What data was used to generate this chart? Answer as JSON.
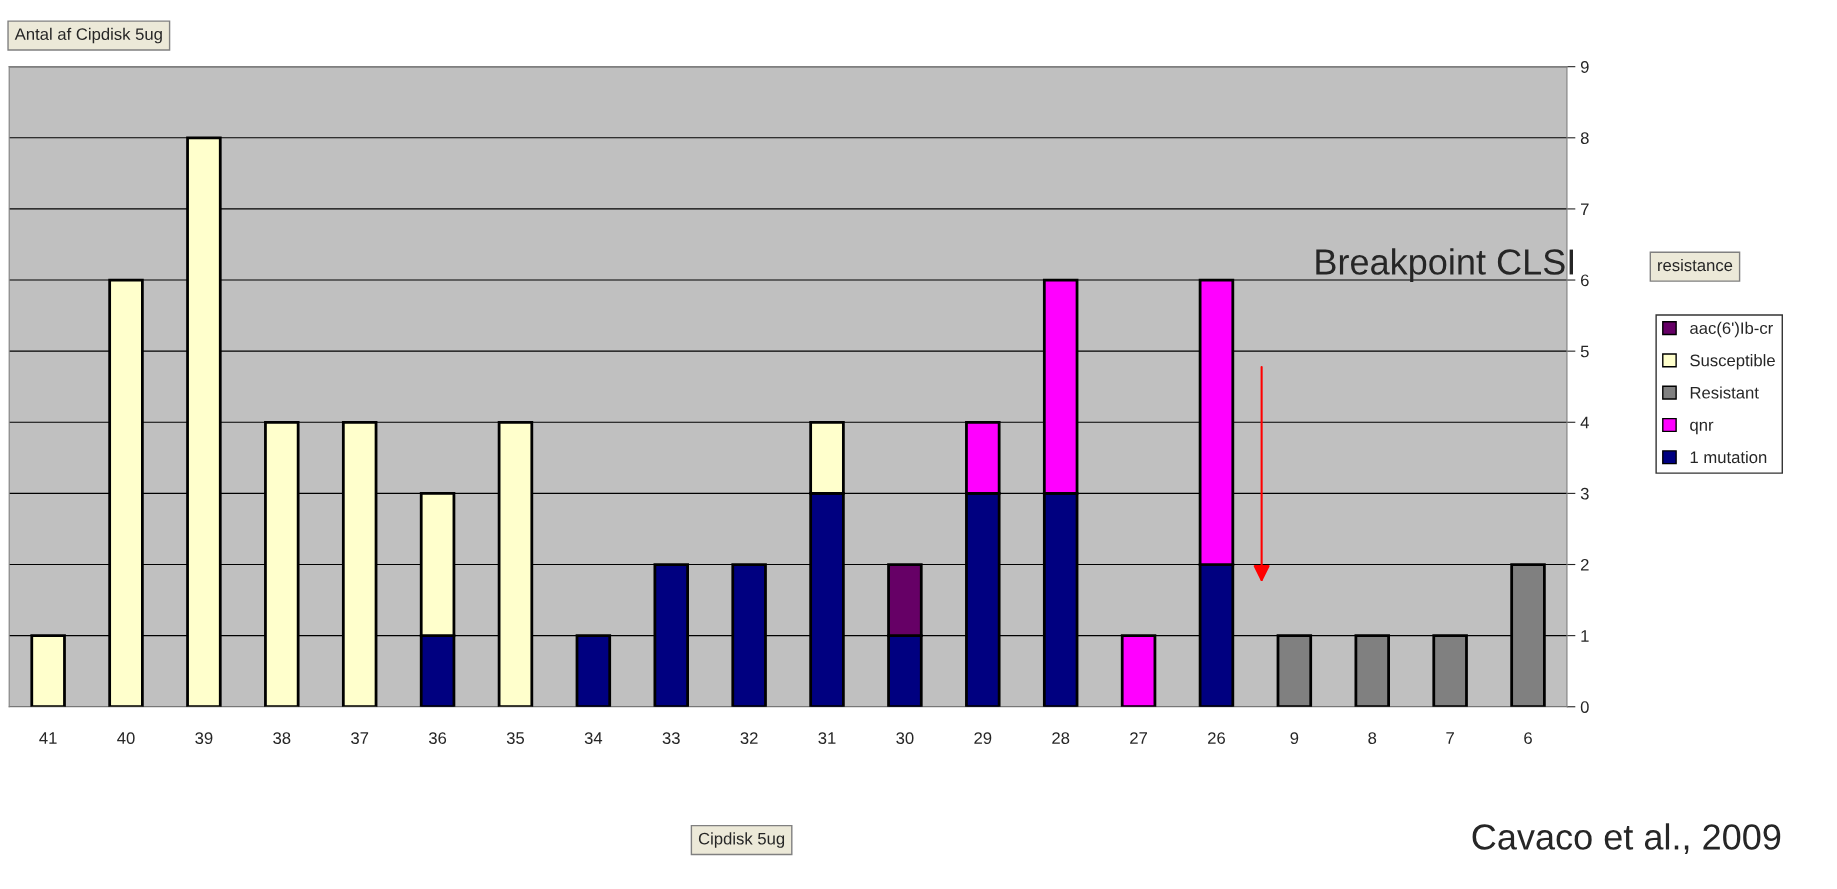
{
  "chart_data": {
    "type": "bar",
    "stacked": true,
    "ylabel": "Antal af Cipdisk 5ug",
    "legend_title": "resistance",
    "categories": [
      "41",
      "40",
      "39",
      "38",
      "37",
      "36",
      "35",
      "34",
      "33",
      "32",
      "31",
      "30",
      "29",
      "28",
      "27",
      "26",
      "9",
      "8",
      "7",
      "6"
    ],
    "series": [
      {
        "name": "1 mutation",
        "color": "#000080",
        "values": [
          null,
          null,
          null,
          null,
          null,
          1,
          null,
          1,
          2,
          2,
          3,
          1,
          3,
          3,
          null,
          2,
          null,
          null,
          null,
          null
        ]
      },
      {
        "name": "qnr",
        "color": "#ff00ff",
        "values": [
          null,
          null,
          null,
          null,
          null,
          null,
          null,
          null,
          null,
          null,
          null,
          null,
          1,
          3,
          1,
          4,
          null,
          null,
          null,
          null
        ]
      },
      {
        "name": "Resistant",
        "color": "#808080",
        "values": [
          null,
          null,
          null,
          null,
          null,
          null,
          null,
          null,
          null,
          null,
          null,
          null,
          null,
          null,
          null,
          null,
          1,
          1,
          1,
          2
        ]
      },
      {
        "name": "Susceptible",
        "color": "#ffffcc",
        "values": [
          1,
          6,
          8,
          4,
          4,
          2,
          4,
          null,
          null,
          null,
          1,
          null,
          null,
          null,
          null,
          null,
          null,
          null,
          null,
          null
        ]
      },
      {
        "name": "aac(6')Ib-cr",
        "color": "#660066",
        "values": [
          null,
          null,
          null,
          null,
          null,
          null,
          null,
          null,
          null,
          null,
          null,
          1,
          null,
          null,
          null,
          null,
          null,
          null,
          null,
          null
        ]
      }
    ],
    "ylim": [
      0,
      9
    ],
    "yticks": [
      0,
      1,
      2,
      3,
      4,
      5,
      6,
      7,
      8,
      9
    ],
    "grid": "y",
    "legend": "right",
    "annotations": [
      "Breakpoint CLSI",
      "Cavaco et al., 2009",
      "Cipdisk 5ug"
    ]
  }
}
